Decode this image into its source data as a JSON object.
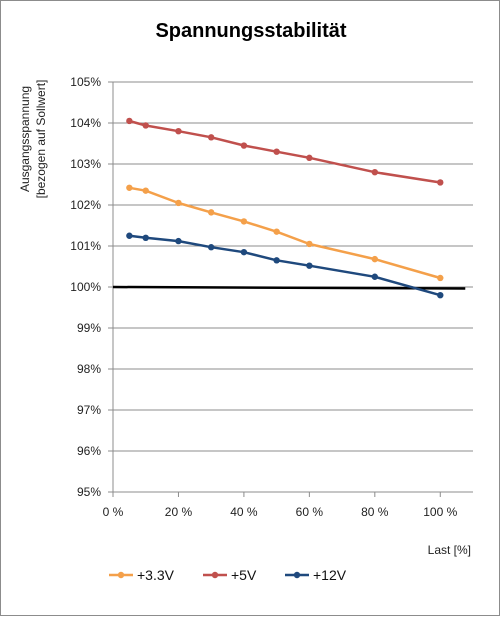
{
  "chart_data": {
    "type": "line",
    "title": "Spannungsstabilität",
    "ylabel_line1": "Ausgangsspannung",
    "ylabel_line2": "[bezogen auf Sollwert]",
    "xlabel": "Last [%]",
    "xlim": [
      0,
      110
    ],
    "ylim": [
      95,
      105
    ],
    "x_ticks": [
      0,
      20,
      40,
      60,
      80,
      100
    ],
    "x_tick_labels": [
      "0 %",
      "20 %",
      "40 %",
      "60 %",
      "80 %",
      "100 %"
    ],
    "y_ticks": [
      95,
      96,
      97,
      98,
      99,
      100,
      101,
      102,
      103,
      104,
      105
    ],
    "y_tick_labels": [
      "95%",
      "96%",
      "97%",
      "98%",
      "99%",
      "100%",
      "101%",
      "102%",
      "103%",
      "104%",
      "105%"
    ],
    "grid": "horizontal",
    "legend_position": "bottom",
    "x": [
      5,
      10,
      20,
      30,
      40,
      50,
      60,
      80,
      100
    ],
    "series": [
      {
        "name": "+3.3V",
        "color": "#f4a04a",
        "values": [
          102.42,
          102.35,
          102.05,
          101.82,
          101.6,
          101.35,
          101.05,
          100.68,
          100.22
        ]
      },
      {
        "name": "+5V",
        "color": "#c0504d",
        "values": [
          104.05,
          103.94,
          103.8,
          103.65,
          103.45,
          103.3,
          103.15,
          102.8,
          102.55
        ]
      },
      {
        "name": "+12V",
        "color": "#1f497d",
        "values": [
          101.25,
          101.2,
          101.12,
          100.97,
          100.85,
          100.65,
          100.52,
          100.25,
          99.8
        ]
      }
    ],
    "reference_line": {
      "y": 100,
      "color": "#000000"
    }
  }
}
